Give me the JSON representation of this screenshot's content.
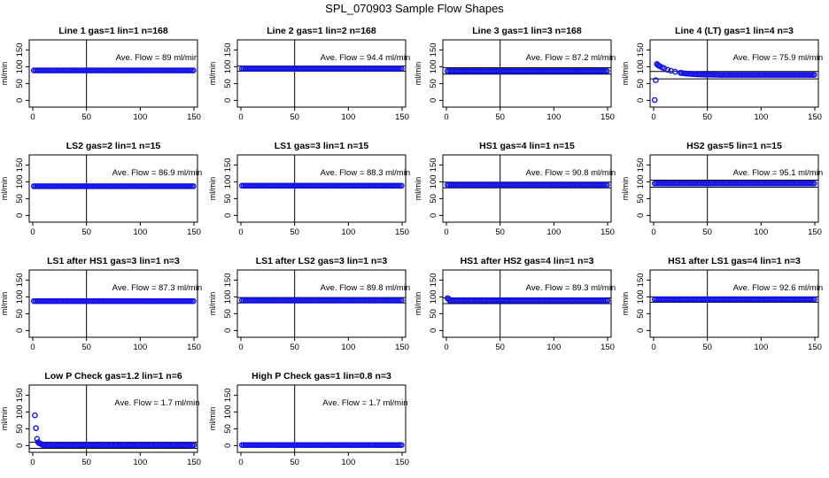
{
  "figure_title": "SPL_070903  Sample Flow Shapes",
  "colors": {
    "points": "#1414e6",
    "lines": "#000000",
    "frame": "#000000"
  },
  "chart_data": [
    {
      "type": "scatter",
      "title": "Line 1 gas=1 lin=1 n=168",
      "annotation": "Ave. Flow =  89  ml/min",
      "ylabel": "ml/min",
      "xlim": [
        0,
        150
      ],
      "ylim": [
        0,
        150
      ],
      "xticks": [
        0,
        50,
        100,
        150
      ],
      "yticks": [
        0,
        50,
        100,
        150
      ],
      "vline_x": 50,
      "hlines": [],
      "points": [],
      "points_desc": "flat series at y≈89 across x=1..150"
    },
    {
      "type": "scatter",
      "title": "Line 2 gas=1 lin=2 n=168",
      "annotation": "Ave. Flow =  94.4  ml/min",
      "ylabel": "ml/min",
      "xlim": [
        0,
        150
      ],
      "ylim": [
        0,
        150
      ],
      "xticks": [
        0,
        50,
        100,
        150
      ],
      "yticks": [
        0,
        50,
        100,
        150
      ],
      "vline_x": 50,
      "hlines": [
        102,
        87
      ],
      "points": []
    },
    {
      "type": "scatter",
      "title": "Line 3 gas=1 lin=3 n=168",
      "annotation": "Ave. Flow =  87.2  ml/min",
      "ylabel": "ml/min",
      "xlim": [
        0,
        150
      ],
      "ylim": [
        0,
        150
      ],
      "xticks": [
        0,
        50,
        100,
        150
      ],
      "yticks": [
        0,
        50,
        100,
        150
      ],
      "vline_x": 50,
      "hlines": [
        97,
        78
      ],
      "points": []
    },
    {
      "type": "scatter",
      "title": "Line 4 (LT) gas=1 lin=4 n=3",
      "annotation": "Ave. Flow =  75.9  ml/min",
      "ylabel": "ml/min",
      "xlim": [
        0,
        150
      ],
      "ylim": [
        0,
        150
      ],
      "xticks": [
        0,
        50,
        100,
        150
      ],
      "yticks": [
        0,
        50,
        100,
        150
      ],
      "vline_x": 50,
      "hlines": [
        86,
        64
      ],
      "points": [
        [
          1,
          1
        ],
        [
          2,
          60
        ],
        [
          3,
          108
        ],
        [
          4,
          105
        ],
        [
          5,
          103
        ],
        [
          6,
          101
        ],
        [
          8,
          98
        ],
        [
          10,
          95
        ],
        [
          13,
          91
        ],
        [
          16,
          88
        ],
        [
          20,
          85
        ],
        [
          25,
          82
        ]
      ]
    },
    {
      "type": "scatter",
      "title": "LS2 gas=2 lin=1 n=15",
      "annotation": "Ave. Flow =  86.9  ml/min",
      "ylabel": "ml/min",
      "xlim": [
        0,
        150
      ],
      "ylim": [
        0,
        150
      ],
      "xticks": [
        0,
        50,
        100,
        150
      ],
      "yticks": [
        0,
        50,
        100,
        150
      ],
      "vline_x": 50,
      "hlines": [],
      "points": []
    },
    {
      "type": "scatter",
      "title": "LS1 gas=3 lin=1 n=15",
      "annotation": "Ave. Flow =  88.3  ml/min",
      "ylabel": "ml/min",
      "xlim": [
        0,
        150
      ],
      "ylim": [
        0,
        150
      ],
      "xticks": [
        0,
        50,
        100,
        150
      ],
      "yticks": [
        0,
        50,
        100,
        150
      ],
      "vline_x": 50,
      "hlines": [],
      "points": []
    },
    {
      "type": "scatter",
      "title": "HS1 gas=4 lin=1 n=15",
      "annotation": "Ave. Flow =  90.8  ml/min",
      "ylabel": "ml/min",
      "xlim": [
        0,
        150
      ],
      "ylim": [
        0,
        150
      ],
      "xticks": [
        0,
        50,
        100,
        150
      ],
      "yticks": [
        0,
        50,
        100,
        150
      ],
      "vline_x": 50,
      "hlines": [
        99,
        82
      ],
      "points": []
    },
    {
      "type": "scatter",
      "title": "HS2 gas=5 lin=1 n=15",
      "annotation": "Ave. Flow =  95.1  ml/min",
      "ylabel": "ml/min",
      "xlim": [
        0,
        150
      ],
      "ylim": [
        0,
        150
      ],
      "xticks": [
        0,
        50,
        100,
        150
      ],
      "yticks": [
        0,
        50,
        100,
        150
      ],
      "vline_x": 50,
      "hlines": [
        105,
        84
      ],
      "points": []
    },
    {
      "type": "scatter",
      "title": "LS1 after HS1 gas=3 lin=1 n=3",
      "annotation": "Ave. Flow =  87.3  ml/min",
      "ylabel": "ml/min",
      "xlim": [
        0,
        150
      ],
      "ylim": [
        0,
        150
      ],
      "xticks": [
        0,
        50,
        100,
        150
      ],
      "yticks": [
        0,
        50,
        100,
        150
      ],
      "vline_x": 50,
      "hlines": [],
      "points": []
    },
    {
      "type": "scatter",
      "title": "LS1 after LS2 gas=3 lin=1 n=3",
      "annotation": "Ave. Flow =  89.8  ml/min",
      "ylabel": "ml/min",
      "xlim": [
        0,
        150
      ],
      "ylim": [
        0,
        150
      ],
      "xticks": [
        0,
        50,
        100,
        150
      ],
      "yticks": [
        0,
        50,
        100,
        150
      ],
      "vline_x": 50,
      "hlines": [
        98,
        82
      ],
      "points": []
    },
    {
      "type": "scatter",
      "title": "HS1 after HS2 gas=4 lin=1 n=3",
      "annotation": "Ave. Flow =  89.3  ml/min",
      "ylabel": "ml/min",
      "xlim": [
        0,
        150
      ],
      "ylim": [
        0,
        150
      ],
      "xticks": [
        0,
        50,
        100,
        150
      ],
      "yticks": [
        0,
        50,
        100,
        150
      ],
      "vline_x": 50,
      "hlines": [
        97,
        80
      ],
      "points": [
        [
          1,
          96
        ],
        [
          2,
          95
        ]
      ]
    },
    {
      "type": "scatter",
      "title": "HS1 after LS1 gas=4 lin=1 n=3",
      "annotation": "Ave. Flow =  92.6  ml/min",
      "ylabel": "ml/min",
      "xlim": [
        0,
        150
      ],
      "ylim": [
        0,
        150
      ],
      "xticks": [
        0,
        50,
        100,
        150
      ],
      "yticks": [
        0,
        50,
        100,
        150
      ],
      "vline_x": 50,
      "hlines": [
        100,
        84
      ],
      "points": []
    },
    {
      "type": "scatter",
      "title": "Low P Check gas=1.2 lin=1 n=6",
      "annotation": "Ave. Flow =  1.7  ml/min",
      "ylabel": "ml/min",
      "xlim": [
        0,
        150
      ],
      "ylim": [
        0,
        150
      ],
      "xticks": [
        0,
        50,
        100,
        150
      ],
      "yticks": [
        0,
        50,
        100,
        150
      ],
      "vline_x": 50,
      "hlines": [
        10,
        -8
      ],
      "points": [
        [
          2,
          90
        ],
        [
          3,
          52
        ],
        [
          4,
          20
        ],
        [
          5,
          10
        ],
        [
          6,
          7
        ],
        [
          7,
          6
        ],
        [
          8,
          5
        ]
      ]
    },
    {
      "type": "scatter",
      "title": "High P Check gas=1 lin=0.8 n=3",
      "annotation": "Ave. Flow =  1.7  ml/min",
      "ylabel": "ml/min",
      "xlim": [
        0,
        150
      ],
      "ylim": [
        0,
        150
      ],
      "xticks": [
        0,
        50,
        100,
        150
      ],
      "yticks": [
        0,
        50,
        100,
        150
      ],
      "vline_x": 50,
      "hlines": [],
      "points": []
    }
  ],
  "series_levels": [
    89,
    94.4,
    87.2,
    75.9,
    86.9,
    88.3,
    90.8,
    95.1,
    87.3,
    89.8,
    89.3,
    92.6,
    1.7,
    1.7
  ]
}
